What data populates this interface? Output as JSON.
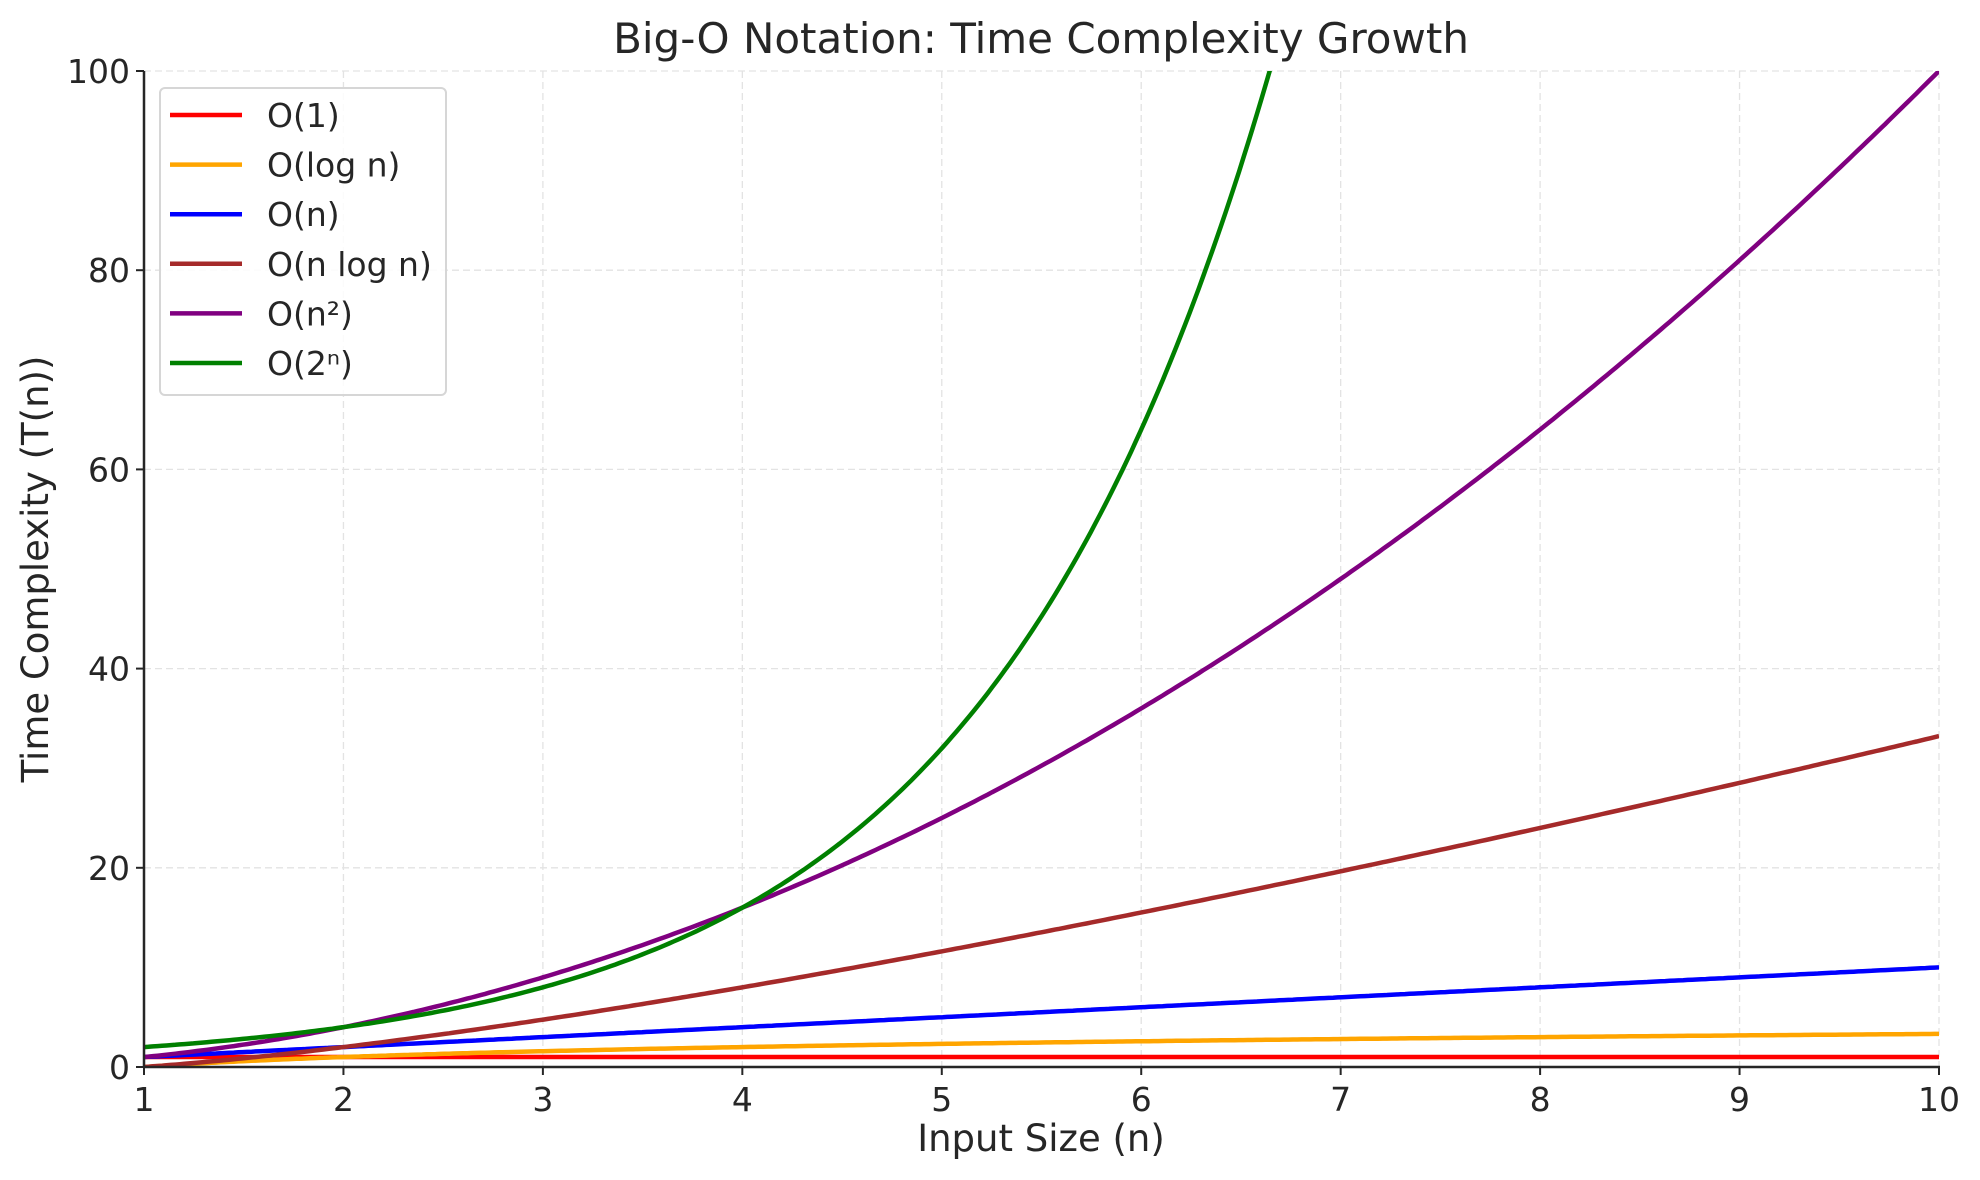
{
  "chart_data": {
    "type": "line",
    "title": "Big-O Notation: Time Complexity Growth",
    "xlabel": "Input Size (n)",
    "ylabel": "Time Complexity (T(n))",
    "xlim": [
      1,
      10
    ],
    "ylim": [
      0,
      100
    ],
    "xticks": [
      "1",
      "2",
      "3",
      "4",
      "5",
      "6",
      "7",
      "8",
      "9",
      "10"
    ],
    "yticks": [
      "0",
      "20",
      "40",
      "60",
      "80",
      "100"
    ],
    "grid": true,
    "legend_position": "top-left",
    "series": [
      {
        "name": "O(1)",
        "color": "#ff0000",
        "function": "1"
      },
      {
        "name": "O(log n)",
        "color": "#ffa500",
        "function": "log2(n)"
      },
      {
        "name": "O(n)",
        "color": "#0000ff",
        "function": "n"
      },
      {
        "name": "O(n log n)",
        "color": "#a52a2a",
        "function": "n*log2(n)"
      },
      {
        "name": "O(n²)",
        "color": "#800080",
        "function": "n^2"
      },
      {
        "name": "O(2ⁿ)",
        "color": "#008000",
        "function": "2^n"
      }
    ]
  }
}
